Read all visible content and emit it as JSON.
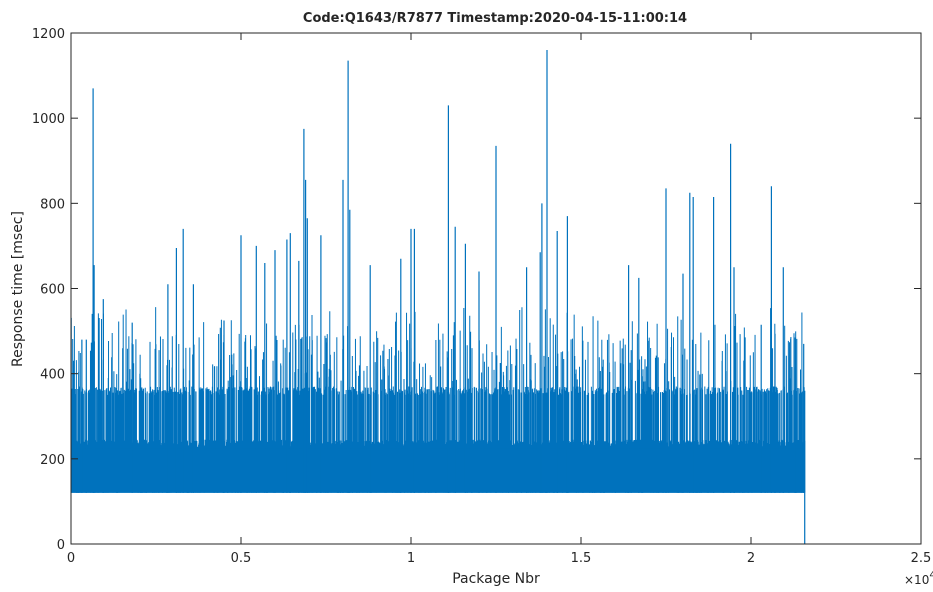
{
  "chart_data": {
    "type": "line",
    "title": "Code:Q1643/R7877   Timestamp:2020-04-15-11:00:14",
    "xlabel": "Package Nbr",
    "ylabel": "Response time [msec]",
    "x_multiplier_label": "×10",
    "x_multiplier_exponent": "4",
    "xlim": [
      0,
      2.5
    ],
    "ylim": [
      0,
      1200
    ],
    "xticks": [
      0,
      0.5,
      1,
      1.5,
      2,
      2.5
    ],
    "xtick_labels": [
      "0",
      "0.5",
      "1",
      "1.5",
      "2",
      "2.5"
    ],
    "yticks": [
      0,
      200,
      400,
      600,
      800,
      1000,
      1200
    ],
    "ytick_labels": [
      "0",
      "200",
      "400",
      "600",
      "800",
      "1000",
      "1200"
    ],
    "grid": false,
    "box": true,
    "series_color": "#0072BD",
    "series": [
      {
        "x_range": [
          0,
          2.158
        ],
        "baseline_min": 120,
        "band_max": 245,
        "common_level": 360,
        "end_drop_value": 0,
        "peaks": [
          {
            "x": 0.065,
            "y": 1070
          },
          {
            "x": 0.068,
            "y": 655
          },
          {
            "x": 0.032,
            "y": 480
          },
          {
            "x": 0.045,
            "y": 480
          },
          {
            "x": 0.095,
            "y": 575
          },
          {
            "x": 0.18,
            "y": 520
          },
          {
            "x": 0.285,
            "y": 610
          },
          {
            "x": 0.31,
            "y": 695
          },
          {
            "x": 0.33,
            "y": 740
          },
          {
            "x": 0.36,
            "y": 610
          },
          {
            "x": 0.45,
            "y": 525
          },
          {
            "x": 0.5,
            "y": 725
          },
          {
            "x": 0.545,
            "y": 700
          },
          {
            "x": 0.57,
            "y": 660
          },
          {
            "x": 0.6,
            "y": 690
          },
          {
            "x": 0.635,
            "y": 715
          },
          {
            "x": 0.645,
            "y": 730
          },
          {
            "x": 0.67,
            "y": 665
          },
          {
            "x": 0.685,
            "y": 975
          },
          {
            "x": 0.69,
            "y": 855
          },
          {
            "x": 0.695,
            "y": 765
          },
          {
            "x": 0.735,
            "y": 725
          },
          {
            "x": 0.8,
            "y": 855
          },
          {
            "x": 0.815,
            "y": 1135
          },
          {
            "x": 0.82,
            "y": 785
          },
          {
            "x": 0.88,
            "y": 655
          },
          {
            "x": 0.97,
            "y": 670
          },
          {
            "x": 1.0,
            "y": 740
          },
          {
            "x": 1.01,
            "y": 740
          },
          {
            "x": 1.11,
            "y": 1030
          },
          {
            "x": 1.13,
            "y": 745
          },
          {
            "x": 1.16,
            "y": 705
          },
          {
            "x": 1.2,
            "y": 640
          },
          {
            "x": 1.25,
            "y": 935
          },
          {
            "x": 1.34,
            "y": 650
          },
          {
            "x": 1.38,
            "y": 685
          },
          {
            "x": 1.385,
            "y": 800
          },
          {
            "x": 1.4,
            "y": 1160
          },
          {
            "x": 1.43,
            "y": 735
          },
          {
            "x": 1.46,
            "y": 770
          },
          {
            "x": 1.64,
            "y": 655
          },
          {
            "x": 1.67,
            "y": 625
          },
          {
            "x": 1.75,
            "y": 835
          },
          {
            "x": 1.8,
            "y": 635
          },
          {
            "x": 1.82,
            "y": 825
          },
          {
            "x": 1.83,
            "y": 815
          },
          {
            "x": 1.89,
            "y": 815
          },
          {
            "x": 1.94,
            "y": 940
          },
          {
            "x": 1.95,
            "y": 650
          },
          {
            "x": 2.03,
            "y": 515
          },
          {
            "x": 2.06,
            "y": 840
          },
          {
            "x": 2.095,
            "y": 650
          },
          {
            "x": 2.13,
            "y": 485
          },
          {
            "x": 2.155,
            "y": 470
          }
        ]
      }
    ]
  }
}
